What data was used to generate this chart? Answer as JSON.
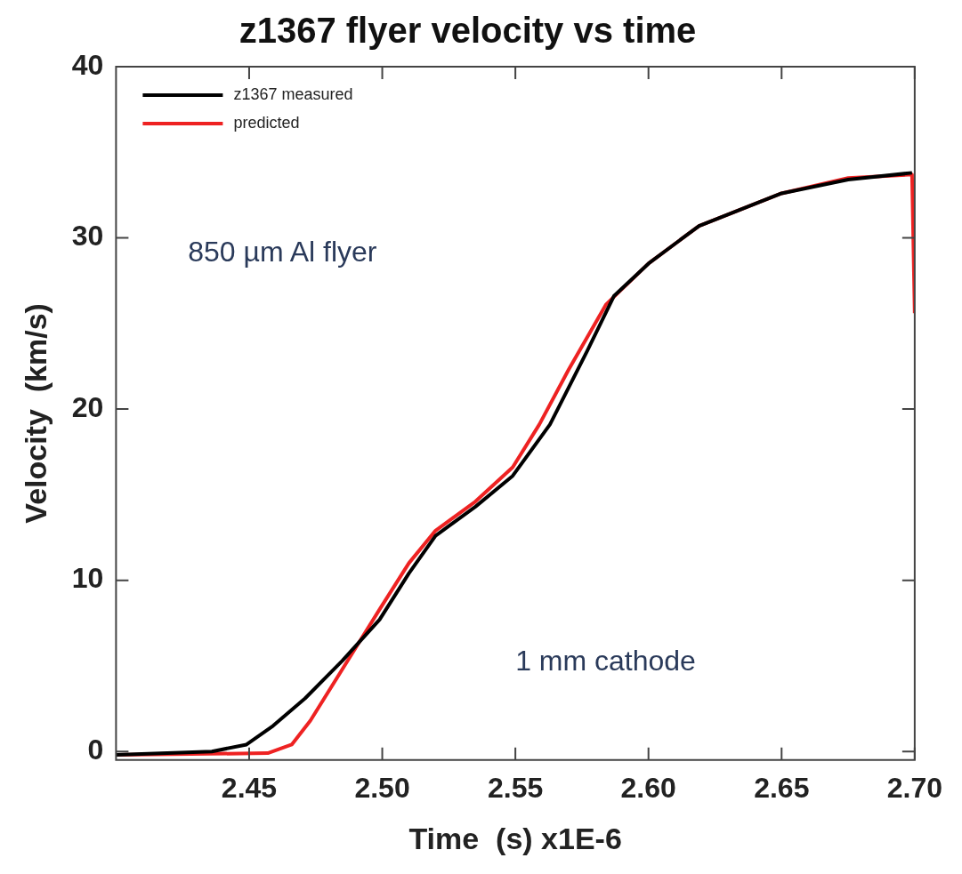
{
  "chart_data": {
    "type": "line",
    "title": "z1367 flyer velocity vs time",
    "xlabel": "Time  (s) x1E-6",
    "ylabel": "Velocity  (km/s)",
    "xlim": [
      2.4,
      2.7
    ],
    "xticks": [
      2.45,
      {
        "value": 2.5,
        "label": "2.50"
      },
      2.55,
      {
        "value": 2.6,
        "label": "2.60"
      },
      2.65,
      {
        "value": 2.7,
        "label": "2.70"
      }
    ],
    "ylim": [
      -0.5,
      40
    ],
    "yticks": [
      0,
      10,
      20,
      30,
      40
    ],
    "grid": false,
    "legend": "top left",
    "marker": "none",
    "line_style": "solid",
    "annotations": [
      "850 µm Al flyer",
      "1 mm cathode"
    ],
    "series": [
      {
        "name": "z1367 measured",
        "color": "#000000",
        "x": [
          2.4,
          2.436,
          2.449,
          2.459,
          2.471,
          2.485,
          2.499,
          2.51,
          2.52,
          2.535,
          2.549,
          2.563,
          2.577,
          2.587,
          2.6,
          2.619,
          2.65,
          2.675,
          2.699
        ],
        "values": [
          -0.2,
          0,
          0.4,
          1.5,
          3.1,
          5.3,
          7.7,
          10.4,
          12.6,
          14.3,
          16.1,
          19.1,
          23.4,
          26.6,
          28.5,
          30.7,
          32.6,
          33.4,
          33.8
        ]
      },
      {
        "name": "predicted",
        "color": "#ee2222",
        "x": [
          2.4,
          2.457,
          2.466,
          2.473,
          2.485,
          2.499,
          2.51,
          2.52,
          2.535,
          2.549,
          2.559,
          2.57,
          2.584,
          2.6,
          2.619,
          2.65,
          2.675,
          2.699,
          2.7
        ],
        "values": [
          -0.2,
          -0.1,
          0.4,
          1.8,
          4.8,
          8.3,
          11,
          12.9,
          14.6,
          16.6,
          19.1,
          22.3,
          26.1,
          28.5,
          30.7,
          32.6,
          33.5,
          33.7,
          25.6
        ]
      }
    ]
  }
}
